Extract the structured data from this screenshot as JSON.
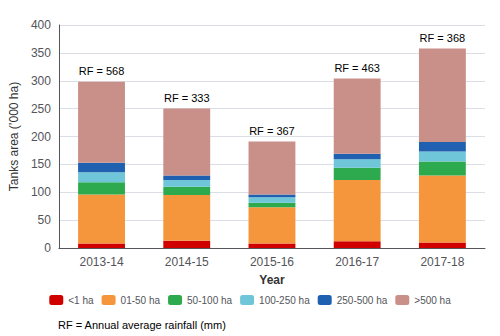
{
  "chart_data": {
    "type": "bar",
    "stacked": true,
    "grid": true,
    "legend": "bottom",
    "xlabel": "Year",
    "ylabel": "Tanks area (’000 ha)",
    "categories": [
      "2013-14",
      "2014-15",
      "2015-16",
      "2016-17",
      "2017-18"
    ],
    "series": [
      {
        "name": "<1 ha",
        "color": "#d00000",
        "values": [
          8,
          13,
          8,
          12,
          10
        ]
      },
      {
        "name": "01-50 ha",
        "color": "#f5963c",
        "values": [
          88,
          82,
          65,
          110,
          120
        ]
      },
      {
        "name": "50-100 ha",
        "color": "#2eaa4e",
        "values": [
          22,
          15,
          8,
          22,
          25
        ]
      },
      {
        "name": "100-250 ha",
        "color": "#6ec6d8",
        "values": [
          18,
          12,
          10,
          15,
          18
        ]
      },
      {
        "name": "250-500 ha",
        "color": "#2060b0",
        "values": [
          17,
          8,
          5,
          10,
          17
        ]
      },
      {
        "name": ">500 ha",
        "color": "#c9908a",
        "values": [
          145,
          120,
          95,
          135,
          168
        ]
      }
    ],
    "annotations": [
      "RF = 568",
      "RF = 333",
      "RF = 367",
      "RF = 463",
      "RF = 368"
    ],
    "note": "RF = Annual average rainfall (mm)",
    "ylim": [
      0,
      400
    ],
    "yticks": [
      0,
      50,
      100,
      150,
      200,
      250,
      300,
      350,
      400
    ]
  }
}
